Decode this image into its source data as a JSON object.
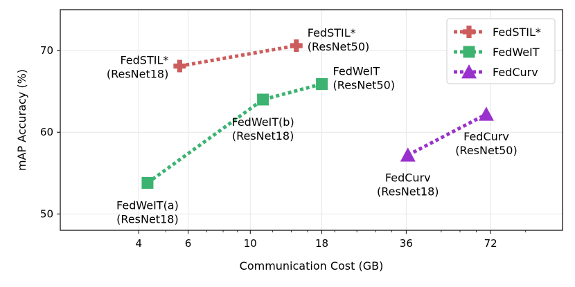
{
  "chart_data": {
    "type": "scatter",
    "title": "",
    "xlabel": "Communication Cost (GB)",
    "ylabel": "mAP Accuracy (%)",
    "x_scale": "log2",
    "xlim": [
      2.1,
      130
    ],
    "ylim": [
      48,
      75
    ],
    "xticks": [
      {
        "value": 4,
        "label": "4"
      },
      {
        "value": 6,
        "label": "6"
      },
      {
        "value": 10,
        "label": "10"
      },
      {
        "value": 18,
        "label": "18"
      },
      {
        "value": 36,
        "label": "36"
      },
      {
        "value": 72,
        "label": "72"
      }
    ],
    "yticks": [
      {
        "value": 50,
        "label": "50"
      },
      {
        "value": 60,
        "label": "60"
      },
      {
        "value": 70,
        "label": "70"
      }
    ],
    "grid": true,
    "legend_position": "top-right",
    "series": [
      {
        "name": "FedSTIL*",
        "color": "#cd5c5c",
        "marker": "plus",
        "points": [
          {
            "x": 5.6,
            "y": 68.1,
            "label_line1": "FedSTIL*",
            "label_line2": "(ResNet18)",
            "label_side": "left"
          },
          {
            "x": 14.6,
            "y": 70.6,
            "label_line1": "FedSTIL*",
            "label_line2": "(ResNet50)",
            "label_side": "right"
          }
        ]
      },
      {
        "name": "FedWeIT",
        "color": "#3cb371",
        "marker": "square",
        "points": [
          {
            "x": 4.3,
            "y": 53.8,
            "label_line1": "FedWeIT(a)",
            "label_line2": "(ResNet18)",
            "label_side": "below"
          },
          {
            "x": 11.1,
            "y": 64.0,
            "label_line1": "FedWeIT(b)",
            "label_line2": "(ResNet18)",
            "label_side": "below"
          },
          {
            "x": 18.0,
            "y": 65.9,
            "label_line1": "FedWeIT",
            "label_line2": "(ResNet50)",
            "label_side": "right"
          }
        ]
      },
      {
        "name": "FedCurv",
        "color": "#9932cc",
        "marker": "triangle",
        "points": [
          {
            "x": 36.5,
            "y": 57.2,
            "label_line1": "FedCurv",
            "label_line2": "(ResNet18)",
            "label_side": "below"
          },
          {
            "x": 69.5,
            "y": 62.2,
            "label_line1": "FedCurv",
            "label_line2": "(ResNet50)",
            "label_side": "below"
          }
        ]
      }
    ]
  }
}
